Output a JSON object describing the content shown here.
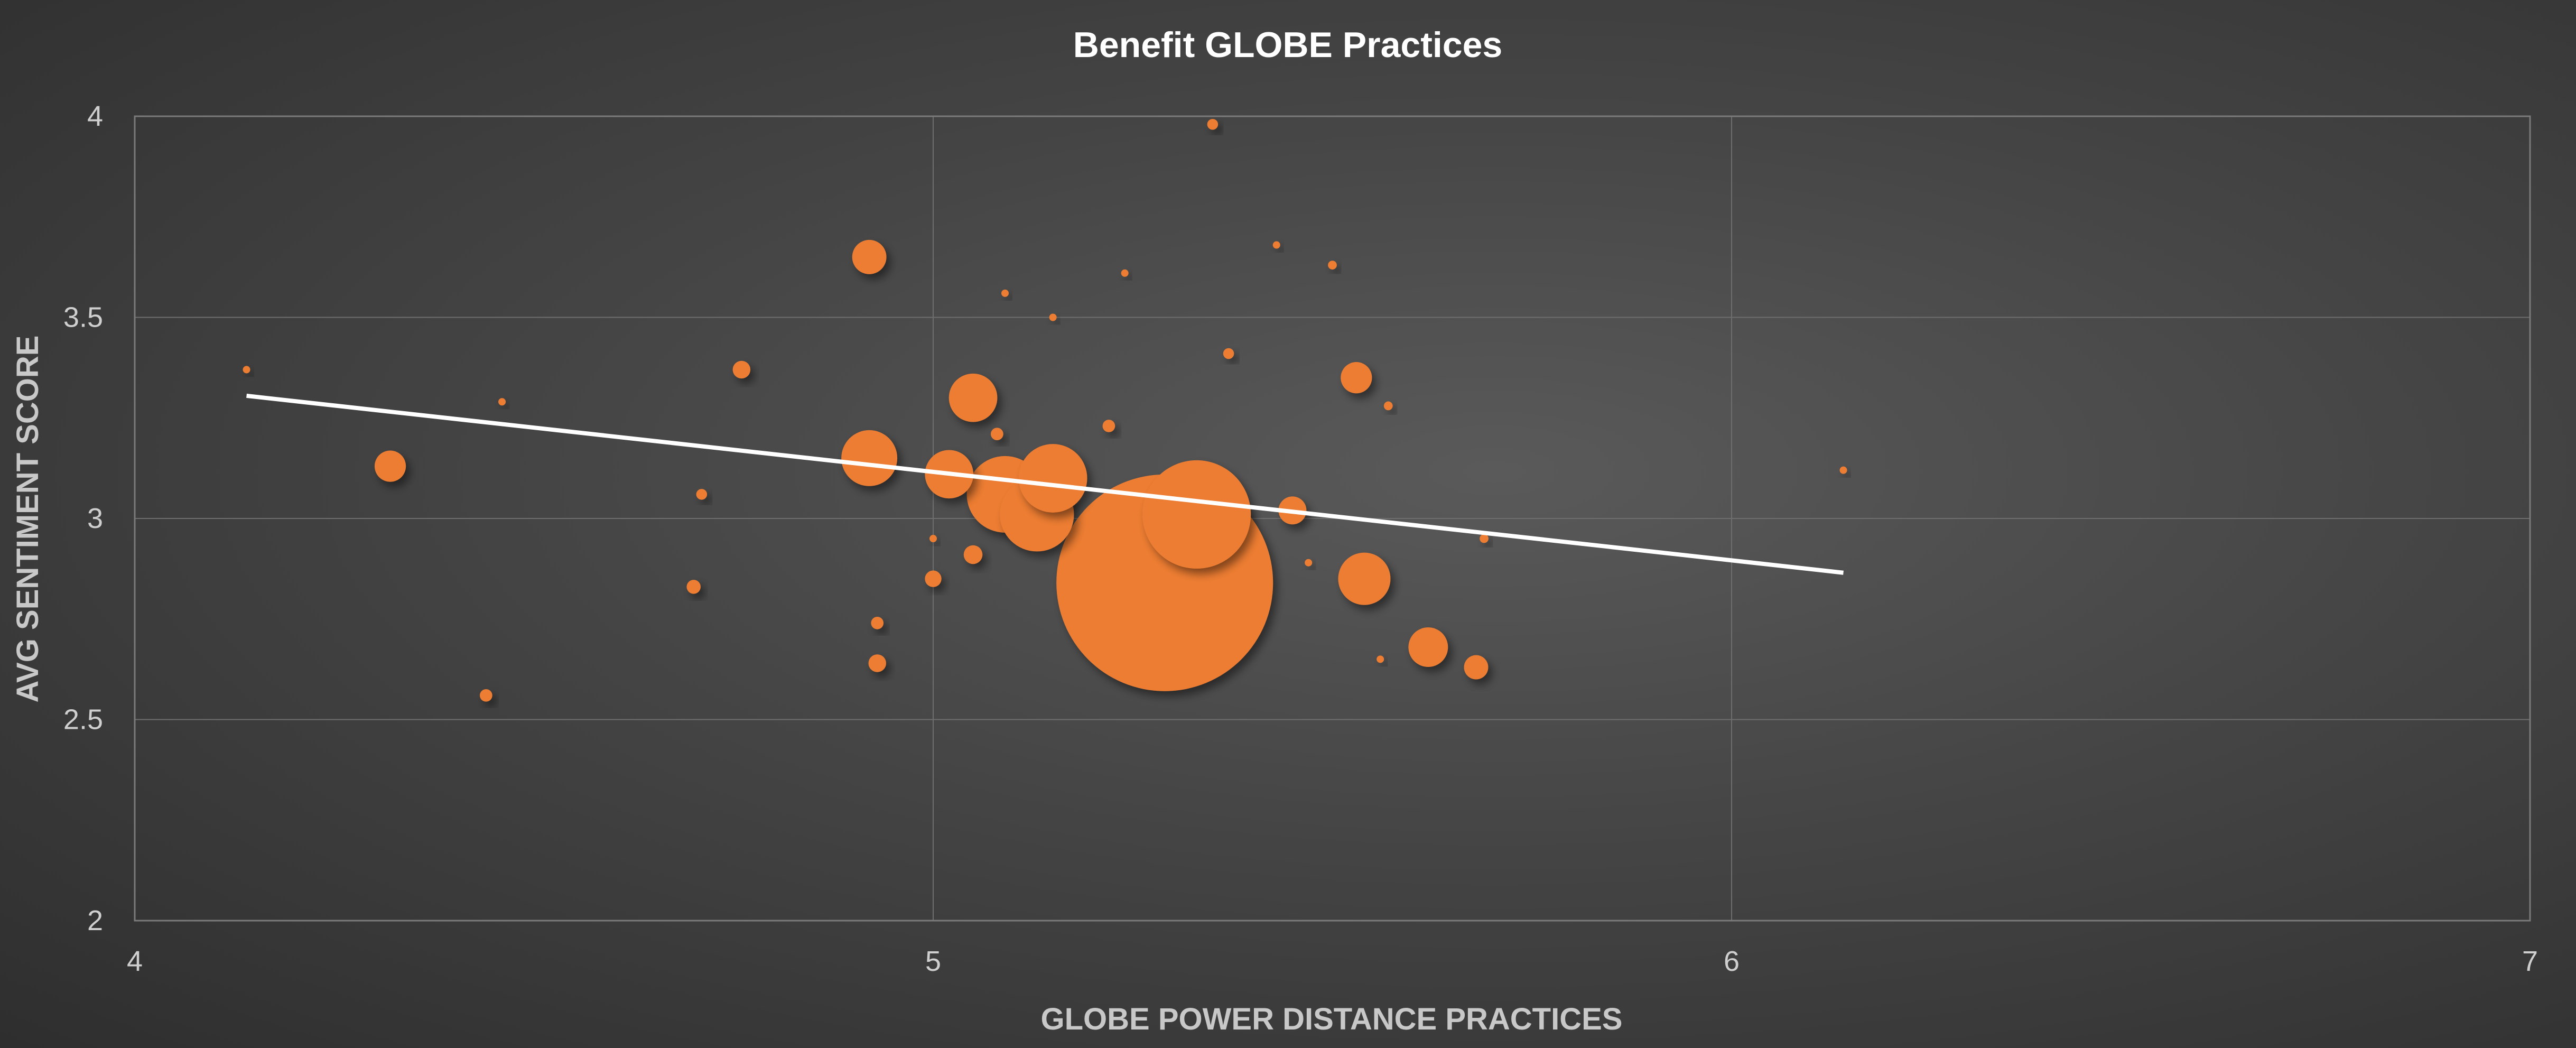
{
  "chart_data": {
    "type": "scatter",
    "subtype": "bubble",
    "title": "Benefit GLOBE Practices",
    "xlabel": "GLOBE POWER DISTANCE PRACTICES",
    "ylabel": "AVG SENTIMENT SCORE",
    "xlim": [
      4,
      7
    ],
    "ylim": [
      2,
      4
    ],
    "x_ticks": [
      "4",
      "5",
      "6",
      "7"
    ],
    "y_ticks": [
      "2",
      "2.5",
      "3",
      "3.5",
      "4"
    ],
    "grid": true,
    "legend": "none",
    "colors": {
      "bubble": "#ed7d31",
      "trendline": "#ffffff"
    },
    "trendline": {
      "type": "linear",
      "x": [
        4.14,
        6.14
      ],
      "y": [
        3.305,
        2.865
      ]
    },
    "series": [
      {
        "points": [
          {
            "x": 4.14,
            "y": 3.37,
            "size": 1
          },
          {
            "x": 4.32,
            "y": 3.13,
            "size": 25
          },
          {
            "x": 4.44,
            "y": 2.56,
            "size": 4
          },
          {
            "x": 4.46,
            "y": 3.29,
            "size": 1
          },
          {
            "x": 4.7,
            "y": 2.83,
            "size": 5
          },
          {
            "x": 4.71,
            "y": 3.06,
            "size": 3
          },
          {
            "x": 4.76,
            "y": 3.37,
            "size": 8
          },
          {
            "x": 4.92,
            "y": 3.65,
            "size": 30
          },
          {
            "x": 4.92,
            "y": 3.15,
            "size": 80
          },
          {
            "x": 4.93,
            "y": 2.74,
            "size": 4
          },
          {
            "x": 4.93,
            "y": 2.64,
            "size": 8
          },
          {
            "x": 5.0,
            "y": 2.95,
            "size": 1
          },
          {
            "x": 5.0,
            "y": 2.85,
            "size": 7
          },
          {
            "x": 5.02,
            "y": 3.11,
            "size": 60
          },
          {
            "x": 5.05,
            "y": 3.3,
            "size": 60
          },
          {
            "x": 5.05,
            "y": 2.91,
            "size": 9
          },
          {
            "x": 5.08,
            "y": 3.21,
            "size": 4
          },
          {
            "x": 5.09,
            "y": 3.56,
            "size": 1
          },
          {
            "x": 5.09,
            "y": 3.06,
            "size": 150
          },
          {
            "x": 5.13,
            "y": 3.01,
            "size": 140
          },
          {
            "x": 5.15,
            "y": 3.1,
            "size": 120
          },
          {
            "x": 5.15,
            "y": 3.5,
            "size": 0.5
          },
          {
            "x": 5.22,
            "y": 3.23,
            "size": 4
          },
          {
            "x": 5.24,
            "y": 3.61,
            "size": 1
          },
          {
            "x": 5.29,
            "y": 2.84,
            "size": 1200
          },
          {
            "x": 5.33,
            "y": 3.01,
            "size": 300
          },
          {
            "x": 5.35,
            "y": 3.98,
            "size": 3
          },
          {
            "x": 5.37,
            "y": 3.41,
            "size": 3
          },
          {
            "x": 5.43,
            "y": 3.68,
            "size": 0.5
          },
          {
            "x": 5.45,
            "y": 3.02,
            "size": 20
          },
          {
            "x": 5.47,
            "y": 2.89,
            "size": 1
          },
          {
            "x": 5.5,
            "y": 3.63,
            "size": 2
          },
          {
            "x": 5.53,
            "y": 3.35,
            "size": 25
          },
          {
            "x": 5.54,
            "y": 2.85,
            "size": 70
          },
          {
            "x": 5.56,
            "y": 2.65,
            "size": 0.5
          },
          {
            "x": 5.57,
            "y": 3.28,
            "size": 2
          },
          {
            "x": 5.62,
            "y": 2.68,
            "size": 40
          },
          {
            "x": 5.68,
            "y": 2.63,
            "size": 15
          },
          {
            "x": 5.69,
            "y": 2.95,
            "size": 2
          },
          {
            "x": 6.14,
            "y": 3.12,
            "size": 1
          }
        ]
      }
    ]
  }
}
